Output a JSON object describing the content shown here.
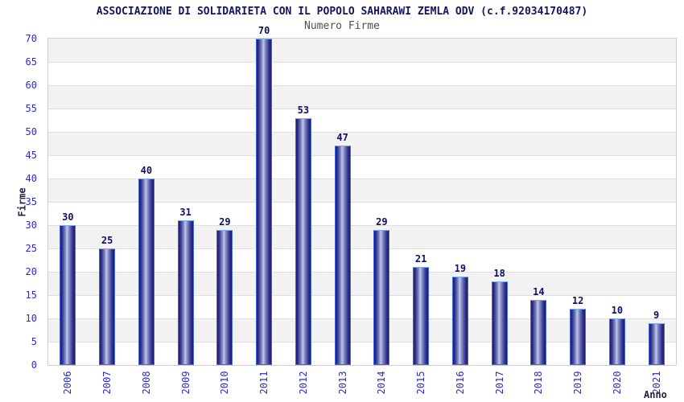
{
  "chart_data": {
    "type": "bar",
    "title": "ASSOCIAZIONE DI SOLIDARIETA CON IL POPOLO SAHARAWI ZEMLA ODV (c.f.92034170487)",
    "subtitle": "Numero Firme",
    "xlabel": "Anno",
    "ylabel": "Firme",
    "categories": [
      "2006",
      "2007",
      "2008",
      "2009",
      "2010",
      "2011",
      "2012",
      "2013",
      "2014",
      "2015",
      "2016",
      "2017",
      "2018",
      "2019",
      "2020",
      "2021"
    ],
    "values": [
      30,
      25,
      40,
      31,
      29,
      70,
      53,
      47,
      29,
      21,
      19,
      18,
      14,
      12,
      10,
      9
    ],
    "ylim": [
      0,
      70
    ],
    "ytick_step": 5,
    "y_ticks": [
      0,
      5,
      10,
      15,
      20,
      25,
      30,
      35,
      40,
      45,
      50,
      55,
      60,
      65,
      70
    ],
    "grid": true,
    "legend_position": "none",
    "colors": {
      "title": "#15155e",
      "subtitle": "#4f4f4f",
      "axis_title": "#23233c",
      "tick_label": "#2b2bd2",
      "value_label": "#0f0f66",
      "bar_dark": "#1d1d76",
      "bar_mid": "#30308a",
      "bar_light": "#c3c9ea",
      "bar_border": "#3f6ae0",
      "bar_border_top": "#7fabf2",
      "band_gray": "#f2f2f2",
      "band_white": "#ffffff",
      "grid_line": "#e0e0e0",
      "plot_border": "#cfcfcf"
    }
  }
}
